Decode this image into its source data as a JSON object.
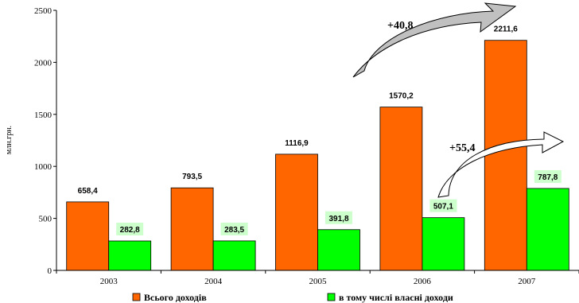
{
  "chart_data": {
    "type": "bar",
    "categories": [
      "2003",
      "2004",
      "2005",
      "2006",
      "2007"
    ],
    "series": [
      {
        "name": "Всього доходів",
        "values": [
          658.4,
          793.5,
          1116.9,
          1570.2,
          2211.6
        ],
        "labels": [
          "658,4",
          "793,5",
          "1116,9",
          "1570,2",
          "2211,6"
        ],
        "color": "#ff6600"
      },
      {
        "name": "в тому числі власні доходи",
        "values": [
          282.8,
          283.5,
          391.8,
          507.1,
          787.8
        ],
        "labels": [
          "282,8",
          "283,5",
          "391,8",
          "507,1",
          "787,8"
        ],
        "color": "#00ff00"
      }
    ],
    "ylim": [
      0,
      2500
    ],
    "yticks": [
      0,
      500,
      1000,
      1500,
      2000,
      2500
    ],
    "ylabel": "млн.грн.",
    "grid": false,
    "legend": "bottom",
    "annotations": [
      "+40,8",
      "+55,4"
    ],
    "label_highlight_color": "#ccffcc",
    "arrow_fill": "#c0c0c0"
  }
}
